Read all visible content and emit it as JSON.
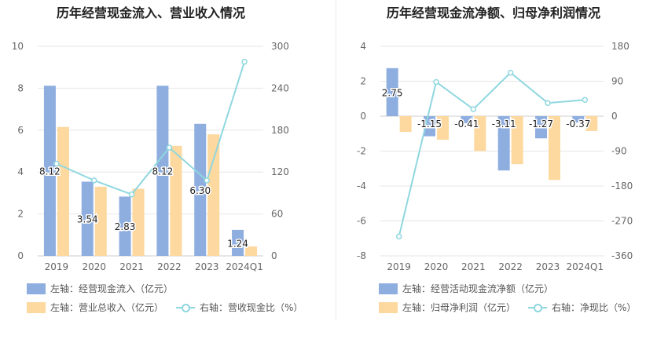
{
  "charts": {
    "left": {
      "title": "历年经营现金流入、营业收入情况"
    },
    "right": {
      "title": "历年经营现金流净额、归母净利润情况"
    }
  },
  "legend": {
    "left_bar1": "左轴：经营现金流入（亿元）",
    "left_bar2": "左轴：营业总收入（亿元）",
    "left_line": "右轴：营收现金比（%）",
    "right_bar1": "左轴：经营活动现金流净额（亿元）",
    "right_bar2": "左轴：归母净利润（亿元）",
    "right_line": "右轴：净现比（%）"
  },
  "colors": {
    "bar1": "#8eaee0",
    "bar2": "#fdd89f",
    "line": "#8fd7df",
    "grid": "#e6e6e6",
    "axis_text": "#666666"
  },
  "chart_data": [
    {
      "type": "bar",
      "title": "历年经营现金流入、营业收入情况",
      "categories": [
        "2019",
        "2020",
        "2021",
        "2022",
        "2023",
        "2024Q1"
      ],
      "series": [
        {
          "name": "经营现金流入",
          "axis": "left",
          "type": "bar",
          "values": [
            8.12,
            3.54,
            2.83,
            8.12,
            6.3,
            1.24
          ],
          "labels": [
            "8.12",
            "3.54",
            "2.83",
            "8.12",
            "6.30",
            "1.24"
          ]
        },
        {
          "name": "营业总收入",
          "axis": "left",
          "type": "bar",
          "values": [
            6.15,
            3.3,
            3.2,
            5.25,
            5.8,
            0.45
          ]
        },
        {
          "name": "营收现金比",
          "axis": "right",
          "type": "line",
          "values": [
            132,
            108,
            88,
            155,
            108,
            278
          ]
        }
      ],
      "left_axis": {
        "min": 0,
        "max": 10,
        "ticks": [
          0,
          2,
          4,
          6,
          8,
          10
        ]
      },
      "right_axis": {
        "min": 0,
        "max": 300,
        "ticks": [
          0,
          60,
          120,
          180,
          240,
          300
        ]
      },
      "grid": true,
      "legend_position": "bottom"
    },
    {
      "type": "bar",
      "title": "历年经营现金流净额、归母净利润情况",
      "categories": [
        "2019",
        "2020",
        "2021",
        "2022",
        "2023",
        "2024Q1"
      ],
      "series": [
        {
          "name": "经营活动现金流净额",
          "axis": "left",
          "type": "bar",
          "values": [
            2.75,
            -1.15,
            -0.41,
            -3.11,
            -1.27,
            -0.37
          ],
          "labels": [
            "2.75",
            "-1.15",
            "-0.41",
            "-3.11",
            "-1.27",
            "-0.37"
          ]
        },
        {
          "name": "归母净利润",
          "axis": "left",
          "type": "bar",
          "values": [
            -0.9,
            -1.35,
            -2.0,
            -2.75,
            -3.65,
            -0.85
          ]
        },
        {
          "name": "净现比",
          "axis": "right",
          "type": "line",
          "values": [
            -310,
            88,
            18,
            112,
            34,
            42
          ]
        }
      ],
      "left_axis": {
        "min": -8,
        "max": 4,
        "ticks": [
          -8,
          -6,
          -4,
          -2,
          0,
          2,
          4
        ]
      },
      "right_axis": {
        "min": -360,
        "max": 180,
        "ticks": [
          -360,
          -270,
          -180,
          -90,
          0,
          90,
          180
        ]
      },
      "grid": true,
      "legend_position": "bottom"
    }
  ]
}
